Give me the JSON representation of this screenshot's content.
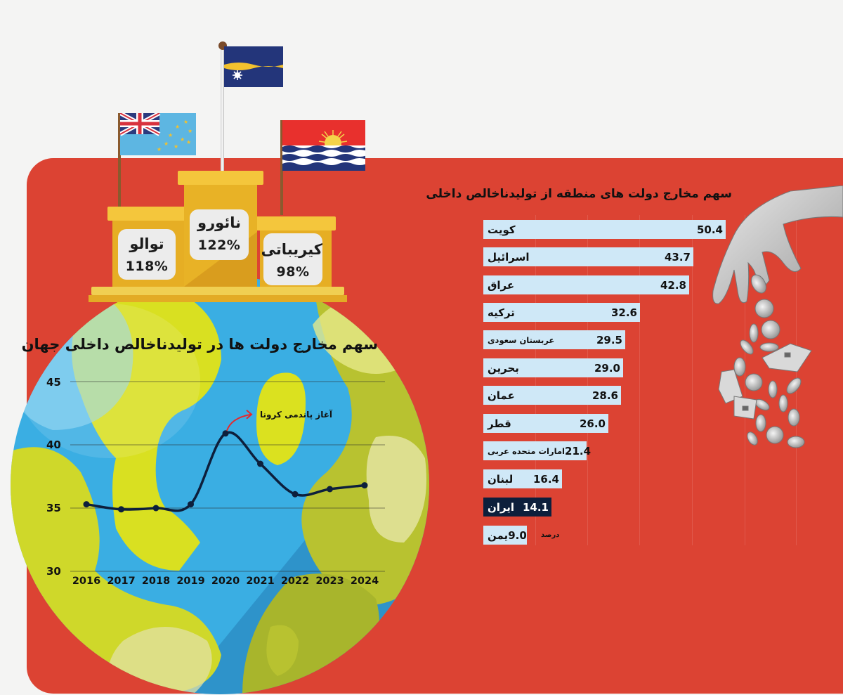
{
  "podium": {
    "center": {
      "country": "نائورو",
      "percent": "122%"
    },
    "left": {
      "country": "توالو",
      "percent": "118%"
    },
    "right": {
      "country": "کیریباتی",
      "percent": "98%"
    }
  },
  "flags": [
    "nauru-flag",
    "tuvalu-flag",
    "kiribati-flag"
  ],
  "colors": {
    "background": "#f4f4f3",
    "panel_red": "#dc4333",
    "bar_fill": "#cfe8f7",
    "bar_highlight": "#0d1f3c",
    "line": "#0d1f3c",
    "annotation_arrow": "#e8262a",
    "podium": "#e6ae24",
    "globe_blue": "#36a8e0",
    "globe_yellow": "#d9e021"
  },
  "line_chart": {
    "title": "سهم مخارج دولت ها در تولیدناخالص داخلی جهان",
    "annotation": "آغاز پاندمی کرونا",
    "y_ticks": [
      "45",
      "40",
      "35",
      "30"
    ],
    "x_ticks": [
      "2016",
      "2017",
      "2018",
      "2019",
      "2020",
      "2021",
      "2022",
      "2023",
      "2024"
    ]
  },
  "bar_chart": {
    "title": "سهم مخارج دولت های منطقه از تولیدناخالص داخلی",
    "unit": "درصد",
    "rows": [
      {
        "label": "کویت",
        "value": "50.4"
      },
      {
        "label": "اسرائیل",
        "value": "43.7"
      },
      {
        "label": "عراق",
        "value": "42.8"
      },
      {
        "label": "ترکیه",
        "value": "32.6"
      },
      {
        "label": "عربستان سعودی",
        "value": "29.5"
      },
      {
        "label": "بحرین",
        "value": "29.0"
      },
      {
        "label": "عمان",
        "value": "28.6"
      },
      {
        "label": "قطر",
        "value": "26.0"
      },
      {
        "label": "امارات متحده عربی",
        "value": "21.4"
      },
      {
        "label": "لبنان",
        "value": "16.4"
      },
      {
        "label": "ایران",
        "value": "14.1"
      },
      {
        "label": "یمن",
        "value": "9.0"
      }
    ]
  },
  "chart_data": [
    {
      "type": "line",
      "title": "سهم مخارج دولت ها در تولیدناخالص داخلی جهان",
      "xlabel": "",
      "ylabel": "",
      "x": [
        2016,
        2017,
        2018,
        2019,
        2020,
        2021,
        2022,
        2023,
        2024
      ],
      "series": [
        {
          "name": "World government spending % of GDP",
          "values": [
            35.3,
            34.9,
            35.0,
            35.3,
            40.9,
            38.5,
            36.1,
            36.5,
            36.8
          ]
        }
      ],
      "ylim": [
        30,
        45
      ],
      "y_ticks": [
        30,
        35,
        40,
        45
      ],
      "grid": true,
      "annotations": [
        {
          "x": 2020,
          "text": "آغاز پاندمی کرونا"
        }
      ]
    },
    {
      "type": "bar",
      "orientation": "horizontal",
      "title": "سهم مخارج دولت های منطقه از تولیدناخالص داخلی",
      "unit": "درصد",
      "categories": [
        "کویت",
        "اسرائیل",
        "عراق",
        "ترکیه",
        "عربستان سعودی",
        "بحرین",
        "عمان",
        "قطر",
        "امارات متحده عربی",
        "لبنان",
        "ایران",
        "یمن"
      ],
      "values": [
        50.4,
        43.7,
        42.8,
        32.6,
        29.5,
        29.0,
        28.6,
        26.0,
        21.4,
        16.4,
        14.1,
        9.0
      ],
      "highlight": "ایران",
      "grid": true
    },
    {
      "type": "table",
      "title": "podium",
      "categories": [
        "نائورو",
        "توالو",
        "کیریباتی"
      ],
      "values": [
        122,
        118,
        98
      ],
      "unit": "%"
    }
  ]
}
